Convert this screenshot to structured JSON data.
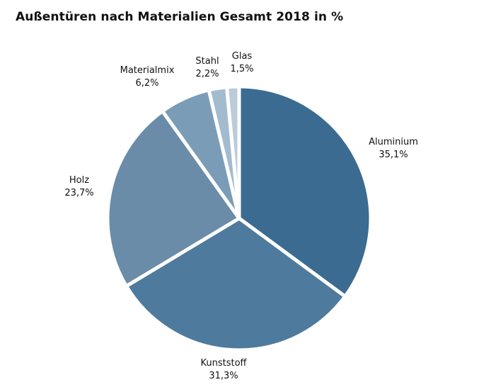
{
  "chart_data": {
    "type": "pie",
    "title": "Außentüren nach Materialien Gesamt 2018 in %",
    "slices": [
      {
        "name": "Aluminium",
        "value": 35.1,
        "label": "35,1%",
        "color": "#3b6b91"
      },
      {
        "name": "Kunststoff",
        "value": 31.3,
        "label": "31,3%",
        "color": "#4e7a9d"
      },
      {
        "name": "Holz",
        "value": 23.7,
        "label": "23,7%",
        "color": "#6a8ca8"
      },
      {
        "name": "Materialmix",
        "value": 6.2,
        "label": "6,2%",
        "color": "#7b9cb6"
      },
      {
        "name": "Stahl",
        "value": 2.2,
        "label": "2,2%",
        "color": "#a3bbcf"
      },
      {
        "name": "Glas",
        "value": 1.5,
        "label": "1,5%",
        "color": "#bccbd9"
      }
    ]
  }
}
